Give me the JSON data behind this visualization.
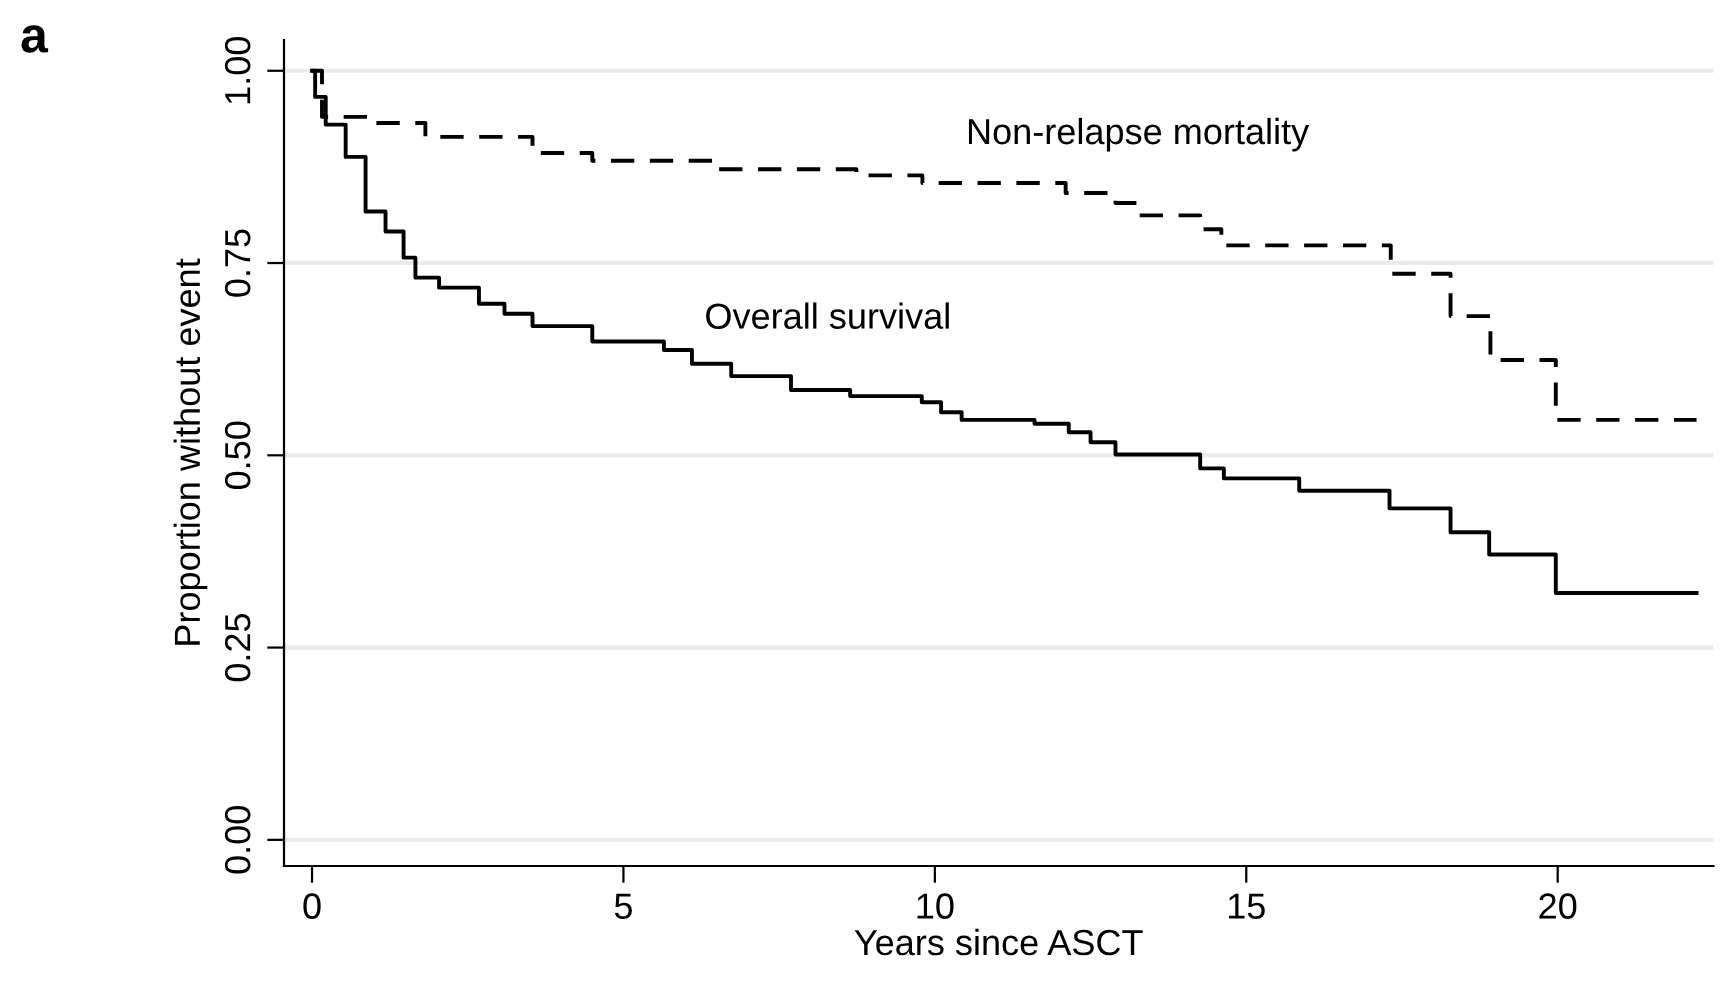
{
  "chart_data": {
    "type": "step",
    "title": "a",
    "xlabel": "Years since ASCT",
    "ylabel": "Proportion without event",
    "xlim": [
      -0.45,
      22.5
    ],
    "xticks": [
      0,
      5,
      10,
      15,
      20
    ],
    "ylim": [
      -0.034,
      1.04
    ],
    "yticks": [
      {
        "value": 0,
        "label": "0.00"
      },
      {
        "value": 0.25,
        "label": "0.25"
      },
      {
        "value": 0.5,
        "label": "0.50"
      },
      {
        "value": 0.75,
        "label": "0.75"
      },
      {
        "value": 1,
        "label": "1.00"
      }
    ],
    "grid": "y",
    "legend": false,
    "series": [
      {
        "name": "Overall survival",
        "color": "#000000",
        "line_style": "solid",
        "x": [
          0,
          0.05,
          0.22,
          0.54,
          0.86,
          1.18,
          1.47,
          1.66,
          2.04,
          2.68,
          3.09,
          3.54,
          4.5,
          5.65,
          6.1,
          6.73,
          7.69,
          8.64,
          9.79,
          10.1,
          10.43,
          11.6,
          12.15,
          12.5,
          12.9,
          14.26,
          14.64,
          15.85,
          17.3,
          18.28,
          18.9,
          19.97,
          22.23
        ],
        "values": [
          1.0,
          0.966,
          0.93,
          0.888,
          0.817,
          0.791,
          0.757,
          0.731,
          0.718,
          0.697,
          0.684,
          0.668,
          0.648,
          0.637,
          0.619,
          0.603,
          0.585,
          0.577,
          0.569,
          0.556,
          0.546,
          0.541,
          0.53,
          0.517,
          0.501,
          0.483,
          0.47,
          0.454,
          0.431,
          0.4,
          0.371,
          0.321,
          0.321
        ]
      },
      {
        "name": "Non-relapse mortality",
        "color": "#000000",
        "line_style": "dashed",
        "x": [
          0,
          0.16,
          1.0,
          1.82,
          3.54,
          4.5,
          6.5,
          8.74,
          9.8,
          12.1,
          12.9,
          13.27,
          14.26,
          14.6,
          17.32,
          18.28,
          18.92,
          19.97,
          22.23
        ],
        "values": [
          1.0,
          0.94,
          0.932,
          0.914,
          0.893,
          0.883,
          0.872,
          0.864,
          0.854,
          0.841,
          0.828,
          0.812,
          0.794,
          0.773,
          0.736,
          0.681,
          0.624,
          0.546,
          0.546
        ]
      }
    ]
  }
}
